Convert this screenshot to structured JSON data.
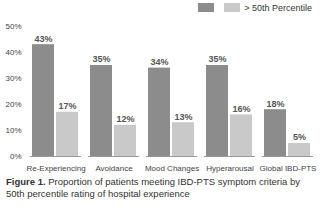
{
  "chart_data": {
    "type": "bar",
    "caption": "Figure 1. Proportion of patients meeting IBD-PTS symptom criteria by 50th percentile rating of hospital experience",
    "categories": [
      "Re-Experiencing",
      "Avoidance",
      "Mood Changes",
      "Hyperarousal",
      "Global IBD-PTS"
    ],
    "series": [
      {
        "name": null,
        "color": "#8c8c8c",
        "values": [
          43,
          35,
          34,
          35,
          18
        ],
        "value_labels": [
          "43%",
          "35%",
          "34%",
          "35%",
          "18%"
        ]
      },
      {
        "name": "> 50th Percentile",
        "color": "#c9c9c9",
        "values": [
          17,
          12,
          13,
          16,
          5
        ],
        "value_labels": [
          "17%",
          "12%",
          "13%",
          "16%",
          "5%"
        ]
      }
    ],
    "ylim": [
      0,
      50
    ],
    "yticks": [
      {
        "value": 0,
        "label": "0%"
      },
      {
        "value": 10,
        "label": "10%"
      },
      {
        "value": 20,
        "label": "20%"
      },
      {
        "value": 30,
        "label": "30%"
      },
      {
        "value": 40,
        "label": "40%"
      },
      {
        "value": 50,
        "label": "50%"
      }
    ],
    "grid": false,
    "legend": "top-right",
    "data_labels": true
  }
}
